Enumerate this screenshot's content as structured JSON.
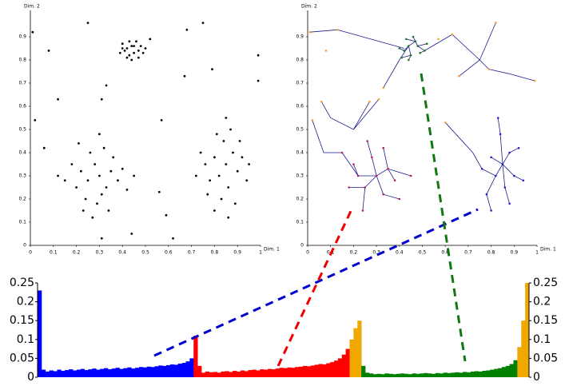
{
  "chart_data": [
    {
      "type": "scatter",
      "xlabel": "Dim. 1",
      "ylabel": "Dim. 2",
      "xlim": [
        0,
        1
      ],
      "ylim": [
        0,
        1
      ],
      "xticks": [
        0,
        0.1,
        0.2,
        0.3,
        0.4,
        0.5,
        0.6,
        0.7,
        0.8,
        0.9,
        1
      ],
      "yticks": [
        0,
        0.1,
        0.2,
        0.3,
        0.4,
        0.5,
        0.6,
        0.7,
        0.8,
        0.9
      ],
      "series": [
        {
          "color": "#000000",
          "x": [
            0.42,
            0.44,
            0.45,
            0.4,
            0.47,
            0.43,
            0.46,
            0.41,
            0.48,
            0.44,
            0.39,
            0.5,
            0.45,
            0.43,
            0.47,
            0.42,
            0.49,
            0.4,
            0.3,
            0.25,
            0.33,
            0.28,
            0.35,
            0.22,
            0.31,
            0.26,
            0.38,
            0.2,
            0.29,
            0.36,
            0.18,
            0.24,
            0.32,
            0.4,
            0.15,
            0.27,
            0.42,
            0.21,
            0.34,
            0.12,
            0.45,
            0.3,
            0.23,
            0.85,
            0.82,
            0.88,
            0.8,
            0.86,
            0.9,
            0.78,
            0.84,
            0.92,
            0.76,
            0.83,
            0.87,
            0.8,
            0.94,
            0.74,
            0.89,
            0.81,
            0.91,
            0.77,
            0.85,
            0.72,
            0.95,
            0.86,
            0.01,
            0.12,
            0.08,
            0.25,
            0.31,
            0.33,
            0.52,
            0.68,
            0.75,
            0.67,
            0.79,
            0.99,
            0.99,
            0.57,
            0.62,
            0.31,
            0.44,
            0.02,
            0.06,
            0.59,
            0.56
          ],
          "values": [
            0.85,
            0.86,
            0.83,
            0.87,
            0.84,
            0.82,
            0.88,
            0.84,
            0.86,
            0.8,
            0.83,
            0.85,
            0.86,
            0.88,
            0.81,
            0.81,
            0.83,
            0.85,
            0.3,
            0.28,
            0.25,
            0.35,
            0.32,
            0.32,
            0.22,
            0.4,
            0.28,
            0.25,
            0.18,
            0.38,
            0.35,
            0.2,
            0.42,
            0.33,
            0.28,
            0.12,
            0.24,
            0.44,
            0.15,
            0.3,
            0.3,
            0.48,
            0.15,
            0.35,
            0.3,
            0.4,
            0.38,
            0.25,
            0.32,
            0.28,
            0.45,
            0.38,
            0.35,
            0.2,
            0.5,
            0.15,
            0.28,
            0.4,
            0.18,
            0.48,
            0.45,
            0.22,
            0.55,
            0.3,
            0.35,
            0.12,
            0.92,
            0.63,
            0.84,
            0.96,
            0.63,
            0.69,
            0.89,
            0.93,
            0.96,
            0.73,
            0.76,
            0.82,
            0.71,
            0.54,
            0.03,
            0.03,
            0.05,
            0.54,
            0.42,
            0.13,
            0.23
          ]
        }
      ]
    },
    {
      "type": "tree",
      "xlabel": "Dim. 1",
      "ylabel": "Dim. 2",
      "xlim": [
        0,
        1
      ],
      "ylim": [
        0,
        1
      ],
      "xticks": [
        0,
        0.1,
        0.2,
        0.3,
        0.4,
        0.5,
        0.6,
        0.7,
        0.8,
        0.9,
        1
      ],
      "yticks": [
        0,
        0.1,
        0.2,
        0.3,
        0.4,
        0.5,
        0.6,
        0.7,
        0.8,
        0.9
      ],
      "edges": {
        "color": "#1a1a8c",
        "x": [
          0.01,
          0.13,
          0.42,
          null,
          0.33,
          0.4,
          0.44,
          null,
          0.82,
          0.75,
          0.63,
          0.51,
          null,
          0.66,
          0.75,
          0.79,
          null,
          0.99,
          0.88,
          0.79,
          null,
          0.06,
          0.1,
          0.2,
          0.27,
          null,
          0.31,
          0.2,
          null,
          0.02,
          0.07,
          0.15,
          0.22,
          0.3,
          0.35,
          0.45,
          null,
          0.26,
          0.28,
          0.3,
          0.33,
          0.4,
          null,
          0.25,
          0.18,
          null,
          0.25,
          0.24,
          null,
          0.2,
          0.22,
          null,
          0.33,
          0.35,
          null,
          0.38,
          0.35,
          null,
          0.25,
          0.3,
          null,
          0.6,
          0.72,
          0.76,
          0.82,
          0.85,
          0.88,
          0.92,
          null,
          0.83,
          0.84,
          0.85,
          null,
          0.86,
          0.85,
          null,
          0.88,
          0.86,
          null,
          0.8,
          0.78,
          0.82,
          null,
          0.94,
          0.9,
          0.85,
          null,
          0.8,
          0.85,
          null,
          0.46,
          0.47,
          0.44,
          0.42,
          0.4,
          null,
          0.44,
          0.45,
          0.44,
          null,
          0.45,
          0.41,
          null,
          0.47,
          0.48,
          0.51,
          0.49,
          null,
          0.48,
          0.52,
          null,
          0.47,
          0.43
        ],
        "values": [
          0.92,
          0.93,
          0.85,
          null,
          0.68,
          0.8,
          0.86,
          null,
          0.96,
          0.8,
          0.91,
          0.84,
          null,
          0.73,
          0.8,
          0.76,
          null,
          0.71,
          0.74,
          0.76,
          null,
          0.62,
          0.55,
          0.5,
          0.62,
          null,
          0.63,
          0.5,
          null,
          0.54,
          0.4,
          0.4,
          0.3,
          0.3,
          0.33,
          0.3,
          null,
          0.45,
          0.38,
          0.3,
          0.22,
          0.2,
          null,
          0.25,
          0.25,
          null,
          0.25,
          0.15,
          null,
          0.35,
          0.3,
          null,
          0.42,
          0.33,
          null,
          0.28,
          0.33,
          null,
          0.25,
          0.3,
          null,
          0.53,
          0.4,
          0.33,
          0.3,
          0.35,
          0.4,
          0.42,
          null,
          0.55,
          0.48,
          0.35,
          null,
          0.25,
          0.35,
          null,
          0.18,
          0.25,
          null,
          0.15,
          0.22,
          0.3,
          null,
          0.28,
          0.3,
          0.35,
          null,
          0.38,
          0.35,
          null,
          0.9,
          0.88,
          0.86,
          0.84,
          0.85,
          null,
          0.86,
          0.82,
          0.8,
          null,
          0.82,
          0.81,
          null,
          0.88,
          0.86,
          0.84,
          0.83,
          null,
          0.86,
          0.87,
          null,
          0.88,
          0.89
        ]
      },
      "series": [
        {
          "color": "#1e7a1e",
          "x": [
            0.44,
            0.47,
            0.42,
            0.49,
            0.45,
            0.43,
            0.48,
            0.4,
            0.51,
            0.46,
            0.44,
            0.52,
            0.41
          ],
          "values": [
            0.86,
            0.88,
            0.84,
            0.83,
            0.82,
            0.89,
            0.86,
            0.85,
            0.84,
            0.9,
            0.8,
            0.87,
            0.81
          ]
        },
        {
          "color": "#c2185b",
          "x": [
            0.3,
            0.25,
            0.35,
            0.28,
            0.22,
            0.33,
            0.38,
            0.2,
            0.26,
            0.4,
            0.18,
            0.33,
            0.45,
            0.15,
            0.24
          ],
          "values": [
            0.3,
            0.25,
            0.33,
            0.38,
            0.3,
            0.22,
            0.28,
            0.35,
            0.45,
            0.2,
            0.25,
            0.42,
            0.3,
            0.4,
            0.15
          ]
        },
        {
          "color": "#1f1fd6",
          "x": [
            0.85,
            0.82,
            0.88,
            0.8,
            0.86,
            0.9,
            0.78,
            0.84,
            0.92,
            0.76,
            0.83,
            0.88,
            0.8,
            0.94
          ],
          "values": [
            0.35,
            0.3,
            0.4,
            0.38,
            0.25,
            0.3,
            0.22,
            0.48,
            0.42,
            0.33,
            0.55,
            0.18,
            0.15,
            0.28
          ]
        },
        {
          "color": "#f0a030",
          "x": [
            0.01,
            0.13,
            0.08,
            0.33,
            0.31,
            0.27,
            0.57,
            0.63,
            0.82,
            0.66,
            0.79,
            0.99,
            0.02,
            0.06,
            0.6
          ],
          "values": [
            0.92,
            0.93,
            0.84,
            0.68,
            0.63,
            0.62,
            0.89,
            0.91,
            0.96,
            0.73,
            0.76,
            0.71,
            0.54,
            0.62,
            0.53
          ]
        }
      ]
    },
    {
      "type": "bar",
      "ylim": [
        0,
        0.25
      ],
      "yticks": [
        0,
        0.05,
        0.1,
        0.15,
        0.2,
        0.25
      ],
      "series": [
        {
          "color": "#0000ff",
          "values": [
            0.23,
            0.02,
            0.015,
            0.018,
            0.016,
            0.02,
            0.017,
            0.019,
            0.021,
            0.018,
            0.02,
            0.022,
            0.019,
            0.021,
            0.023,
            0.02,
            0.022,
            0.024,
            0.021,
            0.023,
            0.025,
            0.022,
            0.024,
            0.026,
            0.023,
            0.025,
            0.027,
            0.026,
            0.028,
            0.027,
            0.029,
            0.031,
            0.03,
            0.032,
            0.034,
            0.033,
            0.036,
            0.038,
            0.042,
            0.05
          ]
        },
        {
          "color": "#ff0000",
          "values": [
            0.11,
            0.03,
            0.012,
            0.015,
            0.013,
            0.014,
            0.012,
            0.015,
            0.016,
            0.014,
            0.017,
            0.015,
            0.018,
            0.016,
            0.019,
            0.02,
            0.018,
            0.021,
            0.02,
            0.022,
            0.021,
            0.023,
            0.025,
            0.024,
            0.026,
            0.025,
            0.027,
            0.028,
            0.03,
            0.029,
            0.031,
            0.033,
            0.035,
            0.034,
            0.037,
            0.04,
            0.044,
            0.05,
            0.06,
            0.075
          ]
        },
        {
          "color": "#f0a800",
          "values": [
            0.1,
            0.13,
            0.15
          ]
        },
        {
          "color": "#008000",
          "values": [
            0.03,
            0.012,
            0.01,
            0.008,
            0.009,
            0.008,
            0.01,
            0.009,
            0.008,
            0.009,
            0.01,
            0.009,
            0.008,
            0.01,
            0.009,
            0.01,
            0.011,
            0.01,
            0.009,
            0.011,
            0.01,
            0.012,
            0.011,
            0.012,
            0.013,
            0.012,
            0.014,
            0.013,
            0.015,
            0.016,
            0.015,
            0.017,
            0.018,
            0.02,
            0.022,
            0.024,
            0.027,
            0.03,
            0.035,
            0.045
          ]
        },
        {
          "color": "#f0a800",
          "values": [
            0.08,
            0.15,
            0.25
          ]
        }
      ]
    }
  ]
}
